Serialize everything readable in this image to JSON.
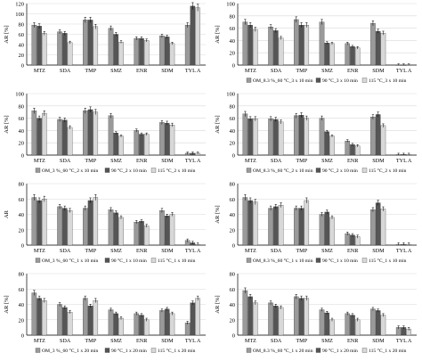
{
  "figure": {
    "chart_data": [
      {
        "type": "bar",
        "categories": [
          "MTZ",
          "SDA",
          "TMP",
          "SMZ",
          "ENR",
          "SDM",
          "TYL A"
        ],
        "ylabel": "AR [%]",
        "ylim": [
          0,
          120
        ],
        "ytick_labels": [
          "120",
          "100",
          "80",
          "60",
          "40",
          "20",
          "0"
        ],
        "yticks": [
          120,
          100,
          80,
          60,
          40,
          20,
          0
        ],
        "ytick_visibility": "partial",
        "grid": true,
        "legend_position": "bottom",
        "legend_visible": false,
        "series": [
          {
            "name": "",
            "values": [
              78,
              65,
              88,
              72,
              52,
              57,
              78
            ]
          },
          {
            "name": "",
            "values": [
              76,
              62,
              88,
              60,
              52,
              55,
              115
            ]
          },
          {
            "name": "",
            "values": [
              62,
              44,
              75,
              45,
              48,
              42,
              112
            ]
          }
        ]
      },
      {
        "type": "bar",
        "categories": [
          "MTZ",
          "SDA",
          "TMP",
          "SMZ",
          "ENR",
          "SDM",
          "TYL A"
        ],
        "ylabel": "AR [%]",
        "ylim": [
          0,
          100
        ],
        "ytick_labels": [
          "100",
          "80",
          "60",
          "40",
          "20",
          "0"
        ],
        "yticks": [
          100,
          80,
          60,
          40,
          20,
          0
        ],
        "ytick_visibility": "partial",
        "grid": true,
        "legend_position": "bottom",
        "legend_visible": true,
        "series": [
          {
            "name": "OM_8.3 %_60 °C_3 x 10 min",
            "values": [
              70,
              62,
              74,
              70,
              35,
              68,
              0
            ]
          },
          {
            "name": "90 °C_3 x 10 min",
            "values": [
              65,
              56,
              65,
              36,
              30,
              55,
              0
            ]
          },
          {
            "name": "115 °C_3 x 10 min",
            "values": [
              58,
              44,
              65,
              35,
              28,
              52,
              0
            ]
          }
        ]
      },
      {
        "type": "bar",
        "categories": [
          "MTZ",
          "SDA",
          "TMP",
          "SMZ",
          "ENR",
          "SDM",
          "TYL A"
        ],
        "ylabel": "AR [%]",
        "ylim": [
          0,
          100
        ],
        "yticks": [
          100,
          80,
          60,
          40,
          20,
          0
        ],
        "ytick_labels": [
          "100",
          "80",
          "60",
          "40",
          "20",
          "0"
        ],
        "grid": true,
        "legend_position": "bottom",
        "legend_visible": true,
        "series": [
          {
            "name": "OM_3 %_60 °C_2 x 10 min",
            "values": [
              72,
              58,
              72,
              64,
              40,
              53,
              3
            ]
          },
          {
            "name": "90 °C_2 x 10 min",
            "values": [
              60,
              57,
              74,
              36,
              34,
              52,
              3
            ]
          },
          {
            "name": "115 °C_2 x 10 min",
            "values": [
              68,
              45,
              70,
              31,
              34,
              49,
              3
            ]
          }
        ]
      },
      {
        "type": "bar",
        "categories": [
          "MTZ",
          "SDA",
          "TMP",
          "SMZ",
          "ENR",
          "SDM",
          "TYL A"
        ],
        "ylabel": "AR [%]",
        "ylim": [
          0,
          100
        ],
        "yticks": [
          100,
          80,
          60,
          40,
          20,
          0
        ],
        "ytick_labels": [
          "100",
          "80",
          "60",
          "40",
          "20",
          "0"
        ],
        "grid": true,
        "legend_position": "bottom",
        "legend_visible": true,
        "series": [
          {
            "name": "OM_8.3 %_60 °C_2 x 10 min",
            "values": [
              67,
              59,
              64,
              60,
              23,
              62,
              1
            ]
          },
          {
            "name": "90 °C_2 x 10 min",
            "values": [
              59,
              58,
              65,
              38,
              17,
              66,
              1
            ]
          },
          {
            "name": "115 °C_2 x 10 min",
            "values": [
              59,
              54,
              60,
              31,
              15,
              48,
              1
            ]
          }
        ]
      },
      {
        "type": "bar",
        "categories": [
          "MTZ",
          "SDA",
          "TMP",
          "SMZ",
          "ENR",
          "SDM",
          "TYL A"
        ],
        "ylabel": "AR",
        "ylim": [
          0,
          80
        ],
        "yticks": [
          80,
          60,
          40,
          20,
          0
        ],
        "ytick_labels": [
          "80",
          "60",
          "40",
          "20",
          "0"
        ],
        "grid": true,
        "legend_position": "bottom",
        "legend_visible": true,
        "series": [
          {
            "name": "OM_3 %_60 °C_1 x 10 min",
            "values": [
              62,
              50,
              48,
              46,
              30,
              45,
              6
            ]
          },
          {
            "name": "90 °C_1 x 10 min",
            "values": [
              58,
              48,
              58,
              42,
              31,
              38,
              3
            ]
          },
          {
            "name": "115 °C_1 x 10 min",
            "values": [
              60,
              45,
              62,
              36,
              25,
              40,
              1
            ]
          }
        ]
      },
      {
        "type": "bar",
        "categories": [
          "MTZ",
          "SDA",
          "TMP",
          "SMZ",
          "ENR",
          "SDM",
          "TYL A"
        ],
        "ylabel": "AR [%]",
        "ylim": [
          0,
          80
        ],
        "yticks": [
          80,
          60,
          40,
          20,
          0
        ],
        "ytick_labels": [
          "80",
          "60",
          "40",
          "20",
          "0"
        ],
        "grid": true,
        "legend_position": "bottom",
        "legend_visible": true,
        "series": [
          {
            "name": "OM_8.3 %_60 °C_1 x 10 min",
            "values": [
              62,
              48,
              48,
              40,
              15,
              46,
              1
            ]
          },
          {
            "name": "90 °C_1 x 10 min",
            "values": [
              58,
              50,
              48,
              43,
              13,
              55,
              1
            ]
          },
          {
            "name": "115 °C_1 x 10 min",
            "values": [
              56,
              52,
              58,
              36,
              11,
              47,
              1
            ]
          }
        ]
      },
      {
        "type": "bar",
        "categories": [
          "MTZ",
          "SDA",
          "TMP",
          "SMZ",
          "ENR",
          "SDM",
          "TYL A"
        ],
        "ylabel": "AR [%]",
        "ylim": [
          0,
          80
        ],
        "yticks": [
          80,
          60,
          40,
          20,
          0
        ],
        "ytick_labels": [
          "80",
          "60",
          "40",
          "20",
          "0"
        ],
        "grid": true,
        "legend_position": "bottom",
        "legend_visible": true,
        "series": [
          {
            "name": "OM_3 %_60 °C_1 x 20 min",
            "values": [
              55,
              40,
              48,
              33,
              28,
              32,
              16
            ]
          },
          {
            "name": "90 °C_1 x 20 min",
            "values": [
              48,
              36,
              38,
              28,
              26,
              34,
              42
            ]
          },
          {
            "name": "115 °C_1 x 20 min",
            "values": [
              45,
              30,
              45,
              22,
              20,
              28,
              48
            ]
          }
        ]
      },
      {
        "type": "bar",
        "categories": [
          "MTZ",
          "SDA",
          "TMP",
          "SMZ",
          "ENR",
          "SDM",
          "TYL A"
        ],
        "ylabel": "AR [%]",
        "ylim": [
          0,
          80
        ],
        "yticks": [
          80,
          60,
          40,
          20,
          0
        ],
        "ytick_labels": [
          "80",
          "60",
          "40",
          "20",
          "0"
        ],
        "grid": true,
        "legend_position": "bottom",
        "legend_visible": true,
        "series": [
          {
            "name": "OM_8.3 %_60 °C_1 x 20 min",
            "values": [
              58,
              42,
              50,
              33,
              28,
              34,
              10
            ]
          },
          {
            "name": "90 °C_1 x 20 min",
            "values": [
              50,
              38,
              48,
              29,
              26,
              32,
              10
            ]
          },
          {
            "name": "115 °C_1 x 20 min",
            "values": [
              42,
              36,
              48,
              20,
              20,
              26,
              8
            ]
          }
        ]
      }
    ]
  },
  "colors": {
    "series": [
      "#9a9a9a",
      "#555555",
      "#d8d8d8"
    ],
    "grid": "#d9d9d9",
    "axis": "#000000"
  }
}
